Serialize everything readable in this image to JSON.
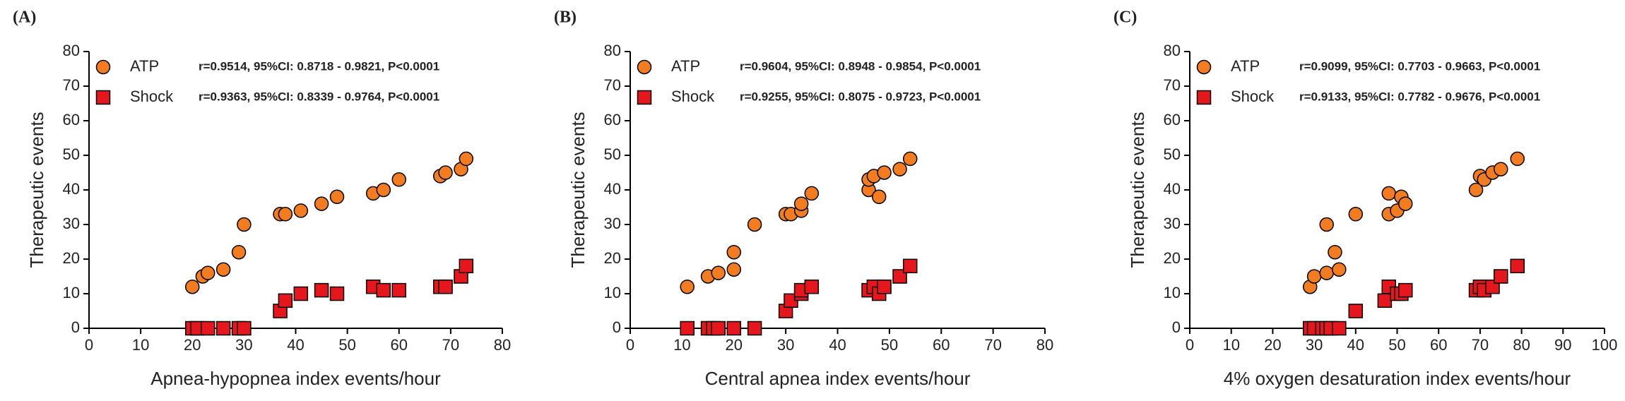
{
  "chart_data": [
    {
      "type": "scatter",
      "panel_label": "(A)",
      "xlabel": "Apnea-hypopnea index events/hour",
      "ylabel": "Therapeutic events",
      "xlim": [
        0,
        80
      ],
      "ylim": [
        0,
        80
      ],
      "xticks": [
        0,
        10,
        20,
        30,
        40,
        50,
        60,
        70,
        80
      ],
      "yticks": [
        0,
        10,
        20,
        30,
        40,
        50,
        60,
        70,
        80
      ],
      "series": [
        {
          "name": "ATP",
          "color": "#f47c20",
          "marker": "circle",
          "annotation": "r=0.9514, 95%CI: 0.8718 - 0.9821,  P<0.0001",
          "x": [
            20,
            22,
            23,
            26,
            29,
            30,
            37,
            38,
            41,
            45,
            48,
            55,
            57,
            60,
            68,
            69,
            72,
            73
          ],
          "y": [
            12,
            15,
            16,
            17,
            22,
            30,
            33,
            33,
            34,
            36,
            38,
            39,
            40,
            43,
            44,
            45,
            46,
            49
          ]
        },
        {
          "name": "Shock",
          "color": "#e5161c",
          "marker": "square",
          "annotation": "r=0.9363, 95%CI: 0.8339 - 0.9764,  P<0.0001",
          "x": [
            20,
            21,
            23,
            26,
            29,
            30,
            37,
            38,
            41,
            45,
            48,
            55,
            57,
            60,
            68,
            69,
            72,
            73
          ],
          "y": [
            0,
            0,
            0,
            0,
            0,
            0,
            5,
            8,
            10,
            11,
            10,
            12,
            11,
            11,
            12,
            12,
            15,
            18
          ]
        }
      ]
    },
    {
      "type": "scatter",
      "panel_label": "(B)",
      "xlabel": "Central apnea index events/hour",
      "ylabel": "Therapeutic events",
      "xlim": [
        0,
        80
      ],
      "ylim": [
        0,
        80
      ],
      "xticks": [
        0,
        10,
        20,
        30,
        40,
        50,
        60,
        70,
        80
      ],
      "yticks": [
        0,
        10,
        20,
        30,
        40,
        50,
        60,
        70,
        80
      ],
      "series": [
        {
          "name": "ATP",
          "color": "#f47c20",
          "marker": "circle",
          "annotation": "r=0.9604, 95%CI: 0.8948 - 0.9854,  P<0.0001",
          "x": [
            11,
            15,
            17,
            20,
            20,
            24,
            30,
            31,
            33,
            33,
            35,
            46,
            46,
            47,
            48,
            49,
            52,
            54
          ],
          "y": [
            12,
            15,
            16,
            17,
            22,
            30,
            33,
            33,
            34,
            36,
            39,
            40,
            43,
            44,
            38,
            45,
            46,
            49
          ]
        },
        {
          "name": "Shock",
          "color": "#e5161c",
          "marker": "square",
          "annotation": "r=0.9255, 95%CI: 0.8075 - 0.9723,  P<0.0001",
          "x": [
            11,
            15,
            16,
            17,
            20,
            24,
            30,
            31,
            33,
            33,
            35,
            46,
            47,
            48,
            49,
            52,
            54
          ],
          "y": [
            0,
            0,
            0,
            0,
            0,
            0,
            5,
            8,
            10,
            11,
            12,
            11,
            12,
            10,
            12,
            15,
            18
          ]
        }
      ]
    },
    {
      "type": "scatter",
      "panel_label": "(C)",
      "xlabel": "4% oxygen desaturation index events/hour",
      "ylabel": "Therapeutic events",
      "xlim": [
        0,
        100
      ],
      "ylim": [
        0,
        80
      ],
      "xticks": [
        0,
        10,
        20,
        30,
        40,
        50,
        60,
        70,
        80,
        90,
        100
      ],
      "yticks": [
        0,
        10,
        20,
        30,
        40,
        50,
        60,
        70,
        80
      ],
      "series": [
        {
          "name": "ATP",
          "color": "#f47c20",
          "marker": "circle",
          "annotation": "r=0.9099, 95%CI: 0.7703 - 0.9663,  P<0.0001",
          "x": [
            29,
            30,
            33,
            33,
            35,
            36,
            40,
            48,
            48,
            50,
            51,
            52,
            69,
            70,
            71,
            73,
            75,
            79
          ],
          "y": [
            12,
            15,
            30,
            16,
            22,
            17,
            33,
            33,
            39,
            34,
            38,
            36,
            40,
            44,
            43,
            45,
            46,
            49
          ]
        },
        {
          "name": "Shock",
          "color": "#e5161c",
          "marker": "square",
          "annotation": "r=0.9133, 95%CI: 0.7782 - 0.9676,  P<0.0001",
          "x": [
            29,
            30,
            32,
            33,
            34,
            36,
            40,
            47,
            48,
            50,
            51,
            52,
            69,
            70,
            71,
            73,
            75,
            79
          ],
          "y": [
            0,
            0,
            0,
            0,
            0,
            0,
            5,
            8,
            12,
            10,
            10,
            11,
            11,
            12,
            11,
            12,
            15,
            18
          ]
        }
      ]
    }
  ]
}
